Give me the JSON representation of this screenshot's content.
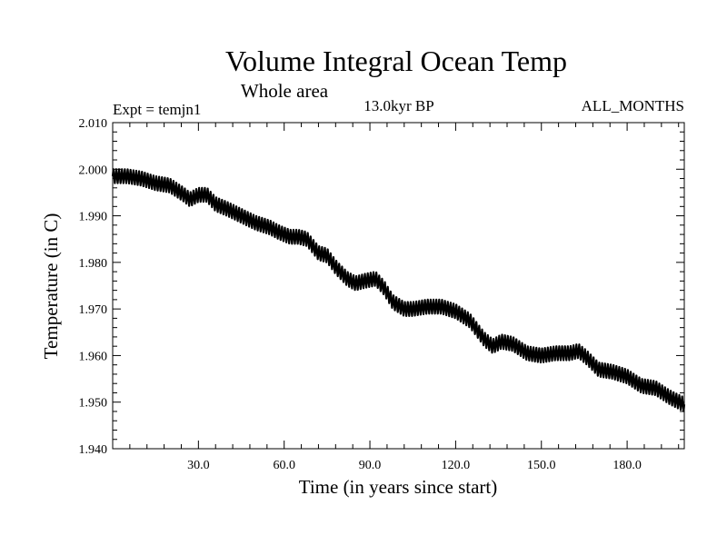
{
  "chart_data": {
    "type": "line",
    "title": "Volume Integral Ocean Temp",
    "subtitle": "Whole area",
    "annotation_left": "Expt = temjn1",
    "annotation_center": "13.0kyr BP",
    "annotation_right": "ALL_MONTHS",
    "xlabel": "Time (in years since start)",
    "ylabel": "Temperature (in C)",
    "xlim": [
      0,
      200
    ],
    "ylim": [
      1.94,
      2.01
    ],
    "x_ticks": [
      {
        "value": 30,
        "label": "30.0"
      },
      {
        "value": 60,
        "label": "60.0"
      },
      {
        "value": 90,
        "label": "90.0"
      },
      {
        "value": 120,
        "label": "120.0"
      },
      {
        "value": 150,
        "label": "150.0"
      },
      {
        "value": 180,
        "label": "180.0"
      }
    ],
    "y_ticks": [
      {
        "value": 1.94,
        "label": "1.940"
      },
      {
        "value": 1.95,
        "label": "1.950"
      },
      {
        "value": 1.96,
        "label": "1.960"
      },
      {
        "value": 1.97,
        "label": "1.970"
      },
      {
        "value": 1.98,
        "label": "1.980"
      },
      {
        "value": 1.99,
        "label": "1.990"
      },
      {
        "value": 2.0,
        "label": "2.000"
      },
      {
        "value": 2.01,
        "label": "2.010"
      }
    ],
    "grid": false,
    "series": [
      {
        "name": "Volume integral ocean temperature",
        "color": "#000000",
        "seasonal_amplitude": 0.0015,
        "x": [
          0,
          5,
          10,
          15,
          20,
          25,
          27,
          30,
          33,
          36,
          40,
          45,
          50,
          55,
          58,
          62,
          65,
          68,
          72,
          75,
          78,
          82,
          85,
          88,
          92,
          95,
          98,
          102,
          105,
          110,
          115,
          120,
          125,
          130,
          133,
          136,
          140,
          145,
          150,
          155,
          160,
          163,
          166,
          170,
          175,
          180,
          185,
          190,
          195,
          200
        ],
        "y": [
          1.9985,
          1.9985,
          1.998,
          1.997,
          1.9965,
          1.9945,
          1.9935,
          1.9945,
          1.9945,
          1.9925,
          1.9915,
          1.99,
          1.9885,
          1.9875,
          1.9865,
          1.9855,
          1.9855,
          1.985,
          1.982,
          1.9815,
          1.979,
          1.9765,
          1.9755,
          1.976,
          1.9765,
          1.9745,
          1.9715,
          1.97,
          1.97,
          1.9705,
          1.9705,
          1.9695,
          1.9675,
          1.9635,
          1.962,
          1.963,
          1.9625,
          1.9605,
          1.96,
          1.9605,
          1.9605,
          1.961,
          1.9595,
          1.957,
          1.9565,
          1.9555,
          1.9535,
          1.953,
          1.951,
          1.9495
        ]
      }
    ]
  }
}
